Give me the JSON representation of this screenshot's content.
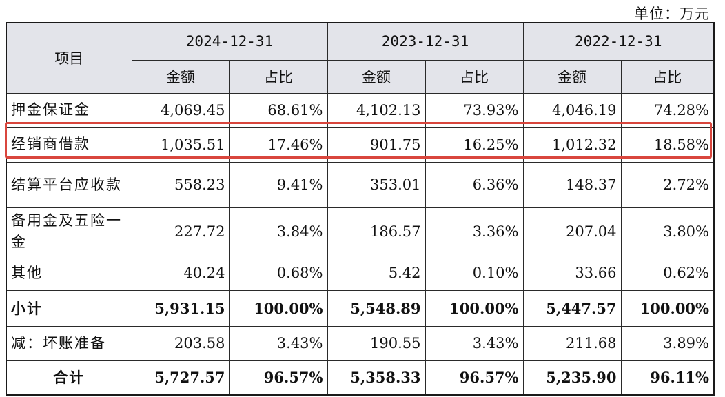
{
  "unit_label": "单位：万元",
  "header": {
    "item_label": "项目",
    "years": [
      "2024-12-31",
      "2023-12-31",
      "2022-12-31"
    ],
    "amount_label": "金额",
    "ratio_label": "占比"
  },
  "rows": [
    {
      "label": "押金保证金",
      "v": [
        "4,069.45",
        "68.61%",
        "4,102.13",
        "73.93%",
        "4,046.19",
        "74.28%"
      ]
    },
    {
      "label": "经销商借款",
      "v": [
        "1,035.51",
        "17.46%",
        "901.75",
        "16.25%",
        "1,012.32",
        "18.58%"
      ]
    },
    {
      "label": "结算平台应收款",
      "v": [
        "558.23",
        "9.41%",
        "353.01",
        "6.36%",
        "148.37",
        "2.72%"
      ]
    },
    {
      "label": "备用金及五险一金",
      "v": [
        "227.72",
        "3.84%",
        "186.57",
        "3.36%",
        "207.04",
        "3.80%"
      ]
    },
    {
      "label": "其他",
      "v": [
        "40.24",
        "0.68%",
        "5.42",
        "0.10%",
        "33.66",
        "0.62%"
      ]
    },
    {
      "label": "小计",
      "v": [
        "5,931.15",
        "100.00%",
        "5,548.89",
        "100.00%",
        "5,447.57",
        "100.00%"
      ]
    },
    {
      "label": "减：坏账准备",
      "v": [
        "203.58",
        "3.43%",
        "190.55",
        "3.43%",
        "211.68",
        "3.89%"
      ]
    },
    {
      "label": "合计",
      "v": [
        "5,727.57",
        "96.57%",
        "5,358.33",
        "96.57%",
        "5,235.90",
        "96.11%"
      ]
    }
  ],
  "highlight_color": "#d9463d",
  "header_bg": "#e3e4ea"
}
